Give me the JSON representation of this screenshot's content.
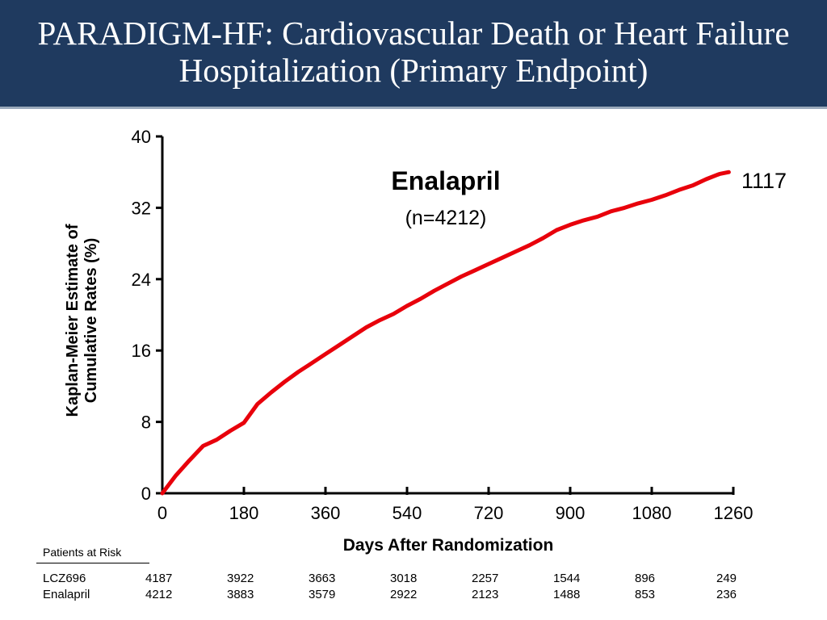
{
  "slide": {
    "title": "PARADIGM-HF: Cardiovascular Death or Heart Failure Hospitalization (Primary Endpoint)"
  },
  "colors": {
    "header_bg": "#1f3a5f",
    "curve": "#e8000b"
  },
  "chart_data": {
    "type": "line",
    "xlabel": "Days After Randomization",
    "ylabel": "Kaplan-Meier Estimate of Cumulative Rates (%)",
    "xlim": [
      0,
      1260
    ],
    "ylim": [
      0,
      40
    ],
    "x_ticks": [
      "0",
      "180",
      "360",
      "540",
      "720",
      "900",
      "1080",
      "1260"
    ],
    "y_ticks": [
      "0",
      "8",
      "16",
      "24",
      "32",
      "40"
    ],
    "grid": false,
    "annotation": {
      "title": "Enalapril",
      "subtitle": "(n=4212)"
    },
    "end_label": "1117",
    "series": [
      {
        "name": "Enalapril",
        "x": [
          0,
          30,
          60,
          90,
          120,
          150,
          180,
          210,
          240,
          270,
          300,
          330,
          360,
          390,
          420,
          450,
          480,
          510,
          540,
          570,
          600,
          630,
          660,
          690,
          720,
          750,
          780,
          810,
          840,
          870,
          900,
          930,
          960,
          990,
          1020,
          1050,
          1080,
          1110,
          1140,
          1170,
          1200,
          1230,
          1250
        ],
        "y": [
          0,
          2.0,
          3.7,
          5.3,
          6.0,
          7.0,
          7.9,
          10.0,
          11.3,
          12.5,
          13.6,
          14.6,
          15.6,
          16.6,
          17.6,
          18.6,
          19.4,
          20.1,
          21.0,
          21.8,
          22.7,
          23.5,
          24.3,
          25.0,
          25.7,
          26.4,
          27.1,
          27.8,
          28.6,
          29.5,
          30.1,
          30.6,
          31.0,
          31.6,
          32.0,
          32.5,
          32.9,
          33.4,
          34.0,
          34.5,
          35.2,
          35.8,
          36.0
        ]
      }
    ]
  },
  "risk_table": {
    "title": "Patients at Risk",
    "rows": [
      {
        "label": "LCZ696",
        "values": [
          "4187",
          "3922",
          "3663",
          "3018",
          "2257",
          "1544",
          "896",
          "249"
        ]
      },
      {
        "label": "Enalapril",
        "values": [
          "4212",
          "3883",
          "3579",
          "2922",
          "2123",
          "1488",
          "853",
          "236"
        ]
      }
    ]
  }
}
